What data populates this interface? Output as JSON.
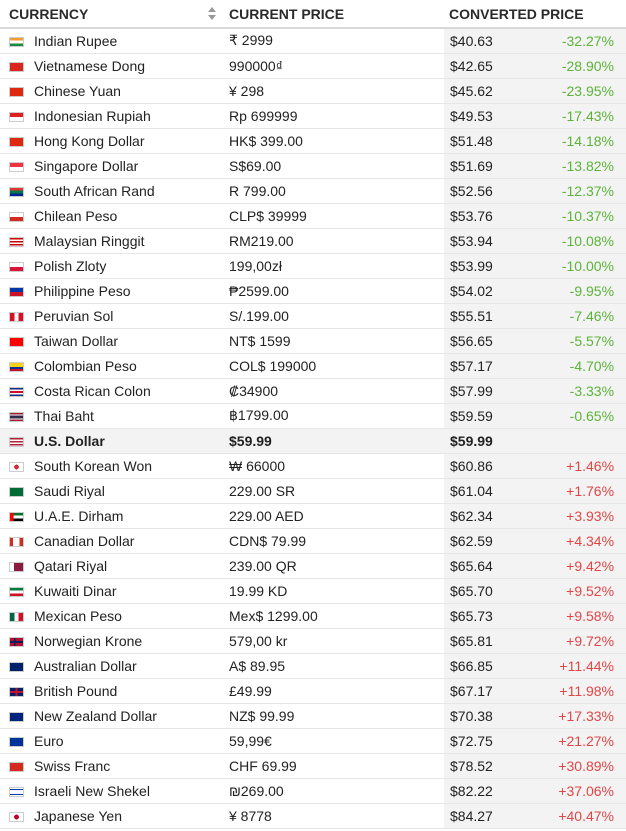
{
  "headers": {
    "currency": "CURRENCY",
    "current_price": "CURRENT PRICE",
    "converted_price": "CONVERTED PRICE"
  },
  "colors": {
    "negative": "#5cb338",
    "positive": "#e04646"
  },
  "rows": [
    {
      "currency": "Indian Rupee",
      "price": "₹ 2999",
      "converted": "$40.63",
      "change": "-32.27%",
      "flag": "india-flag-icon",
      "flag_bg": "linear-gradient(#f29a33 33%, #fff 33% 66%, #1b8a3a 66%)"
    },
    {
      "currency": "Vietnamese Dong",
      "price": "990000₫",
      "converted": "$42.65",
      "change": "-28.90%",
      "flag": "vietnam-flag-icon",
      "flag_bg": "#da251d"
    },
    {
      "currency": "Chinese Yuan",
      "price": "¥ 298",
      "converted": "$45.62",
      "change": "-23.95%",
      "flag": "china-flag-icon",
      "flag_bg": "#de2910"
    },
    {
      "currency": "Indonesian Rupiah",
      "price": "Rp 699999",
      "converted": "$49.53",
      "change": "-17.43%",
      "flag": "indonesia-flag-icon",
      "flag_bg": "linear-gradient(#e02020 50%, #fff 50%)"
    },
    {
      "currency": "Hong Kong Dollar",
      "price": "HK$ 399.00",
      "converted": "$51.48",
      "change": "-14.18%",
      "flag": "hong-kong-flag-icon",
      "flag_bg": "#de2910"
    },
    {
      "currency": "Singapore Dollar",
      "price": "S$69.00",
      "converted": "$51.69",
      "change": "-13.82%",
      "flag": "singapore-flag-icon",
      "flag_bg": "linear-gradient(#ef3340 50%, #fff 50%)"
    },
    {
      "currency": "South African Rand",
      "price": "R 799.00",
      "converted": "$52.56",
      "change": "-12.37%",
      "flag": "south-africa-flag-icon",
      "flag_bg": "linear-gradient(#de3831 33%, #007a4d 33% 66%, #002395 66%)"
    },
    {
      "currency": "Chilean Peso",
      "price": "CLP$ 39999",
      "converted": "$53.76",
      "change": "-10.37%",
      "flag": "chile-flag-icon",
      "flag_bg": "linear-gradient(#fff 50%, #d52b1e 50%)"
    },
    {
      "currency": "Malaysian Ringgit",
      "price": "RM219.00",
      "converted": "$53.94",
      "change": "-10.08%",
      "flag": "malaysia-flag-icon",
      "flag_bg": "repeating-linear-gradient(#cc0001 0 1.5px, #fff 1.5px 3px)"
    },
    {
      "currency": "Polish Zloty",
      "price": "199,00zł",
      "converted": "$53.99",
      "change": "-10.00%",
      "flag": "poland-flag-icon",
      "flag_bg": "linear-gradient(#fff 50%, #dc143c 50%)"
    },
    {
      "currency": "Philippine Peso",
      "price": "₱2599.00",
      "converted": "$54.02",
      "change": "-9.95%",
      "flag": "philippines-flag-icon",
      "flag_bg": "linear-gradient(#0038a8 50%, #ce1126 50%)"
    },
    {
      "currency": "Peruvian Sol",
      "price": "S/.199.00",
      "converted": "$55.51",
      "change": "-7.46%",
      "flag": "peru-flag-icon",
      "flag_bg": "linear-gradient(90deg, #d91023 33%, #fff 33% 66%, #d91023 66%)"
    },
    {
      "currency": "Taiwan Dollar",
      "price": "NT$ 1599",
      "converted": "$56.65",
      "change": "-5.57%",
      "flag": "taiwan-flag-icon",
      "flag_bg": "#fe0000"
    },
    {
      "currency": "Colombian Peso",
      "price": "COL$ 199000",
      "converted": "$57.17",
      "change": "-4.70%",
      "flag": "colombia-flag-icon",
      "flag_bg": "linear-gradient(#fcd116 50%, #003893 50% 75%, #ce1126 75%)"
    },
    {
      "currency": "Costa Rican Colon",
      "price": "₡34900",
      "converted": "$57.99",
      "change": "-3.33%",
      "flag": "costa-rica-flag-icon",
      "flag_bg": "linear-gradient(#002b7f 20%, #fff 20% 35%, #ce1126 35% 65%, #fff 65% 80%, #002b7f 80%)"
    },
    {
      "currency": "Thai Baht",
      "price": "฿1799.00",
      "converted": "$59.59",
      "change": "-0.65%",
      "flag": "thailand-flag-icon",
      "flag_bg": "linear-gradient(#a51931 17%, #fff 17% 33%, #2d2a4a 33% 67%, #fff 67% 83%, #a51931 83%)"
    },
    {
      "currency": "U.S. Dollar",
      "price": "$59.99",
      "converted": "$59.99",
      "change": "",
      "flag": "usa-flag-icon",
      "flag_bg": "repeating-linear-gradient(#b22234 0 1.5px, #fff 1.5px 3px)",
      "base": true
    },
    {
      "currency": "South Korean Won",
      "price": "₩ 66000",
      "converted": "$60.86",
      "change": "+1.46%",
      "flag": "south-korea-flag-icon",
      "flag_bg": "radial-gradient(circle, #cd2e3a 30%, #fff 32%)"
    },
    {
      "currency": "Saudi Riyal",
      "price": "229.00 SR",
      "converted": "$61.04",
      "change": "+1.76%",
      "flag": "saudi-arabia-flag-icon",
      "flag_bg": "#006c35"
    },
    {
      "currency": "U.A.E. Dirham",
      "price": "229.00 AED",
      "converted": "$62.34",
      "change": "+3.93%",
      "flag": "uae-flag-icon",
      "flag_bg": "linear-gradient(90deg, #ff0000 27%, transparent 27%), linear-gradient(#00732f 33%, #fff 33% 66%, #000 66%)"
    },
    {
      "currency": "Canadian Dollar",
      "price": "CDN$ 79.99",
      "converted": "$62.59",
      "change": "+4.34%",
      "flag": "canada-flag-icon",
      "flag_bg": "linear-gradient(90deg, #d52b1e 25%, #fff 25% 75%, #d52b1e 75%)"
    },
    {
      "currency": "Qatari Riyal",
      "price": "239.00 QR",
      "converted": "$65.64",
      "change": "+9.42%",
      "flag": "qatar-flag-icon",
      "flag_bg": "linear-gradient(90deg, #fff 30%, #8d1b3d 30%)"
    },
    {
      "currency": "Kuwaiti Dinar",
      "price": "19.99 KD",
      "converted": "$65.70",
      "change": "+9.52%",
      "flag": "kuwait-flag-icon",
      "flag_bg": "linear-gradient(#007a3d 33%, #fff 33% 66%, #ce1126 66%)"
    },
    {
      "currency": "Mexican Peso",
      "price": "Mex$ 1299.00",
      "converted": "$65.73",
      "change": "+9.58%",
      "flag": "mexico-flag-icon",
      "flag_bg": "linear-gradient(90deg, #006847 33%, #fff 33% 66%, #ce1126 66%)"
    },
    {
      "currency": "Norwegian Krone",
      "price": "579,00 kr",
      "converted": "$65.81",
      "change": "+9.72%",
      "flag": "norway-flag-icon",
      "flag_bg": "linear-gradient(90deg, transparent 30%, #00205b 30% 42%, transparent 42%), linear-gradient(transparent 40%, #00205b 40% 60%, transparent 60%), #ba0c2f"
    },
    {
      "currency": "Australian Dollar",
      "price": "A$ 89.95",
      "converted": "$66.85",
      "change": "+11.44%",
      "flag": "australia-flag-icon",
      "flag_bg": "#012169"
    },
    {
      "currency": "British Pound",
      "price": "£49.99",
      "converted": "$67.17",
      "change": "+11.98%",
      "flag": "uk-flag-icon",
      "flag_bg": "linear-gradient(90deg, transparent 42%, #c8102e 42% 58%, transparent 58%), linear-gradient(transparent 38%, #c8102e 38% 62%, transparent 62%), #012169"
    },
    {
      "currency": "New Zealand Dollar",
      "price": "NZ$ 99.99",
      "converted": "$70.38",
      "change": "+17.33%",
      "flag": "new-zealand-flag-icon",
      "flag_bg": "#00247d"
    },
    {
      "currency": "Euro",
      "price": "59,99€",
      "converted": "$72.75",
      "change": "+21.27%",
      "flag": "eu-flag-icon",
      "flag_bg": "#003399"
    },
    {
      "currency": "Swiss Franc",
      "price": "CHF 69.99",
      "converted": "$78.52",
      "change": "+30.89%",
      "flag": "switzerland-flag-icon",
      "flag_bg": "#d52b1e"
    },
    {
      "currency": "Israeli New Shekel",
      "price": "₪269.00",
      "converted": "$82.22",
      "change": "+37.06%",
      "flag": "israel-flag-icon",
      "flag_bg": "linear-gradient(#fff 15%, #0038b8 15% 28%, #fff 28% 72%, #0038b8 72% 85%, #fff 85%)"
    },
    {
      "currency": "Japanese Yen",
      "price": "¥ 8778",
      "converted": "$84.27",
      "change": "+40.47%",
      "flag": "japan-flag-icon",
      "flag_bg": "radial-gradient(circle, #bc002d 30%, #fff 33%)"
    }
  ]
}
